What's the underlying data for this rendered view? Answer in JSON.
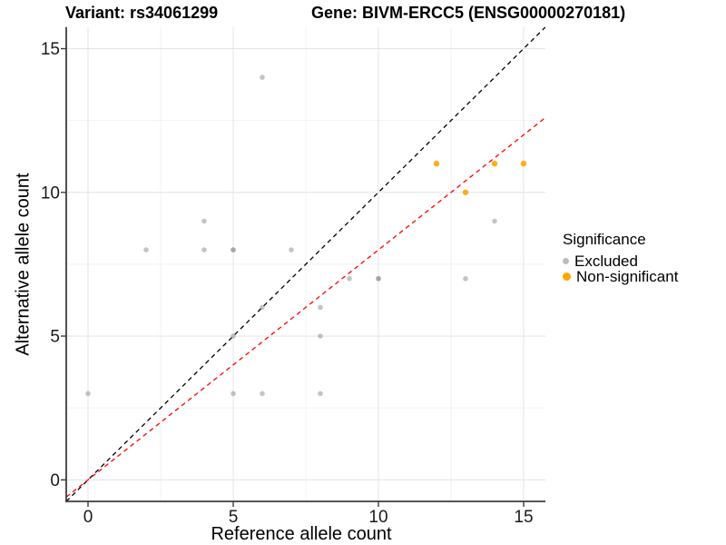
{
  "titles": {
    "left": "Variant: rs34061299",
    "right": "Gene: BIVM-ERCC5 (ENSG00000270181)"
  },
  "legend": {
    "title": "Significance",
    "position": "right",
    "items": [
      {
        "label": "Excluded",
        "color": "#BDBDBD",
        "dot_size": 7
      },
      {
        "label": "Non-significant",
        "color": "#FFA500",
        "dot_size": 9
      }
    ]
  },
  "chart_data": {
    "type": "scatter",
    "title": "",
    "xlabel": "Reference allele count",
    "ylabel": "Alternative allele count",
    "xlim": [
      -0.75,
      15.75
    ],
    "ylim": [
      -0.75,
      15.75
    ],
    "x_ticks": [
      0,
      5,
      10,
      15
    ],
    "y_ticks": [
      0,
      5,
      10,
      15
    ],
    "x_minor_ticks": [
      2.5,
      7.5,
      12.5
    ],
    "y_minor_ticks": [
      2.5,
      7.5,
      12.5
    ],
    "grid": "on",
    "series": [
      {
        "name": "Excluded",
        "color": "#BDBDBD",
        "point_fill": "#8A8A8A",
        "point_opacity": 0.5,
        "point_radius": 2.8,
        "points": [
          [
            0,
            3
          ],
          [
            2,
            8
          ],
          [
            4,
            8
          ],
          [
            4,
            9
          ],
          [
            5,
            3
          ],
          [
            5,
            5
          ],
          [
            5,
            8
          ],
          [
            5,
            8
          ],
          [
            6,
            3
          ],
          [
            6,
            6
          ],
          [
            6,
            14
          ],
          [
            7,
            8
          ],
          [
            8,
            3
          ],
          [
            8,
            5
          ],
          [
            8,
            6
          ],
          [
            9,
            7
          ],
          [
            10,
            7
          ],
          [
            10,
            7
          ],
          [
            13,
            7
          ],
          [
            14,
            9
          ]
        ]
      },
      {
        "name": "Non-significant",
        "color": "#FFA500",
        "point_fill": "#FFA500",
        "point_opacity": 0.9,
        "point_radius": 3.2,
        "points": [
          [
            12,
            11
          ],
          [
            13,
            10
          ],
          [
            14,
            11
          ],
          [
            15,
            11
          ]
        ]
      }
    ],
    "lines": [
      {
        "name": "identity-line",
        "slope": 1.0,
        "intercept": 0,
        "color": "#000000",
        "style": "dashed"
      },
      {
        "name": "fit-line",
        "slope": 0.8,
        "intercept": 0,
        "color": "#FF0000",
        "style": "dashed"
      }
    ]
  }
}
